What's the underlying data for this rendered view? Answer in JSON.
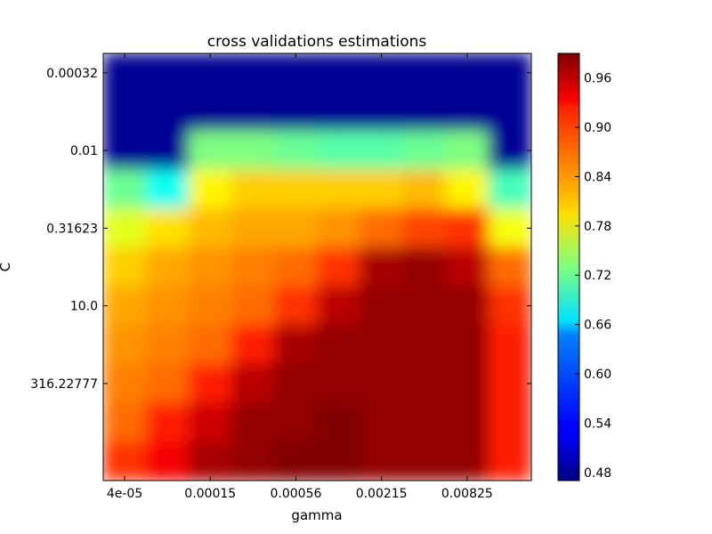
{
  "chart_data": {
    "type": "heatmap",
    "title": "cross validations estimations",
    "xlabel": "gamma",
    "ylabel": "C",
    "x_tick_labels": [
      "4e-05",
      "0.00015",
      "0.00056",
      "0.00215",
      "0.00825"
    ],
    "y_tick_labels": [
      "0.00032",
      "0.01",
      "0.31623",
      "10.0",
      "316.22777"
    ],
    "colorbar_ticks": [
      "0.48",
      "0.54",
      "0.60",
      "0.66",
      "0.72",
      "0.78",
      "0.84",
      "0.90",
      "0.96"
    ],
    "colorbar_range": [
      0.47,
      0.99
    ],
    "colormap": "jet",
    "interpolation": "bilinear",
    "values": [
      [
        0.48,
        0.48,
        0.48,
        0.48,
        0.48,
        0.48,
        0.48,
        0.48,
        0.48,
        0.48
      ],
      [
        0.48,
        0.48,
        0.48,
        0.48,
        0.48,
        0.48,
        0.48,
        0.48,
        0.48,
        0.48
      ],
      [
        0.48,
        0.48,
        0.73,
        0.73,
        0.72,
        0.71,
        0.71,
        0.72,
        0.73,
        0.48
      ],
      [
        0.72,
        0.67,
        0.8,
        0.82,
        0.82,
        0.82,
        0.82,
        0.83,
        0.8,
        0.7
      ],
      [
        0.78,
        0.81,
        0.83,
        0.84,
        0.84,
        0.85,
        0.87,
        0.89,
        0.9,
        0.79
      ],
      [
        0.82,
        0.84,
        0.85,
        0.86,
        0.87,
        0.9,
        0.97,
        0.98,
        0.96,
        0.87
      ],
      [
        0.84,
        0.85,
        0.86,
        0.87,
        0.9,
        0.96,
        0.98,
        0.98,
        0.98,
        0.9
      ],
      [
        0.85,
        0.86,
        0.87,
        0.91,
        0.97,
        0.98,
        0.98,
        0.98,
        0.98,
        0.91
      ],
      [
        0.86,
        0.87,
        0.91,
        0.96,
        0.98,
        0.98,
        0.98,
        0.98,
        0.98,
        0.91
      ],
      [
        0.87,
        0.91,
        0.95,
        0.98,
        0.98,
        0.99,
        0.98,
        0.98,
        0.98,
        0.91
      ],
      [
        0.9,
        0.93,
        0.97,
        0.98,
        0.99,
        0.99,
        0.98,
        0.98,
        0.98,
        0.91
      ]
    ]
  }
}
